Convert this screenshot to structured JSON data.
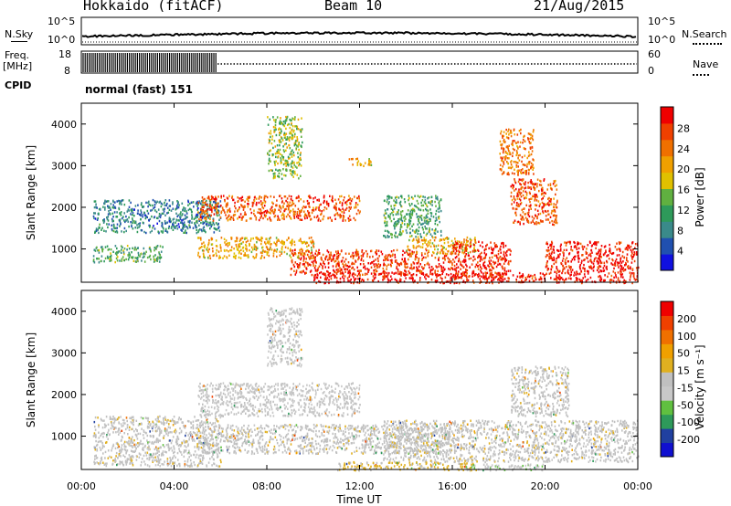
{
  "header": {
    "station": "Hokkaido (fitACF)",
    "beam": "Beam 10",
    "date": "21/Aug/2015"
  },
  "noise_panel": {
    "left_label": "N.Sky",
    "right_label": "N.Search",
    "tick_top": "10^5",
    "tick_bottom": "10^0"
  },
  "freq_panel": {
    "left_label_1": "Freq.",
    "left_label_2": "[MHz]",
    "ticks_left": [
      "18",
      "8"
    ],
    "ticks_right": [
      "60",
      "0"
    ],
    "right_label": "Nave"
  },
  "cpid": {
    "label": "CPID",
    "value": "normal (fast) 151"
  },
  "colors": {
    "power_scale": [
      "#1010e0",
      "#2050b0",
      "#3a8a8a",
      "#2e9a5a",
      "#60b040",
      "#e0c000",
      "#f0a000",
      "#f07000",
      "#f04000",
      "#f00000"
    ],
    "velocity_scale": [
      "#f00000",
      "#f04000",
      "#f07000",
      "#f0a000",
      "#e0b020",
      "#c0c0c0",
      "#c8c8c8",
      "#60c040",
      "#2e9a5a",
      "#2040a0",
      "#1010d0"
    ]
  },
  "chart_data": [
    {
      "type": "heatmap",
      "panel": "power",
      "ylabel": "Slant Range [km]",
      "yticks": [
        "1000",
        "2000",
        "3000",
        "4000"
      ],
      "ylim": [
        200,
        4500
      ],
      "xlim": [
        "00:00",
        "24:00"
      ],
      "colorbar_label": "Power [dB]",
      "colorbar_ticks": [
        "4",
        "8",
        "12",
        "16",
        "20",
        "24",
        "28"
      ],
      "colorbar_range": [
        0,
        32
      ],
      "echo_regions": [
        {
          "t_start": 0.5,
          "t_end": 3.5,
          "r_low": 700,
          "r_high": 1100,
          "value": 12
        },
        {
          "t_start": 0.5,
          "t_end": 6,
          "r_low": 1400,
          "r_high": 2200,
          "value": 8
        },
        {
          "t_start": 5,
          "t_end": 12,
          "r_low": 1700,
          "r_high": 2300,
          "value": 26
        },
        {
          "t_start": 5,
          "t_end": 10,
          "r_low": 800,
          "r_high": 1300,
          "value": 20
        },
        {
          "t_start": 9,
          "t_end": 16,
          "r_low": 400,
          "r_high": 1000,
          "value": 28
        },
        {
          "t_start": 13,
          "t_end": 15.5,
          "r_low": 1300,
          "r_high": 2300,
          "value": 12
        },
        {
          "t_start": 14,
          "t_end": 17,
          "r_low": 900,
          "r_high": 1300,
          "value": 20
        },
        {
          "t_start": 16,
          "t_end": 18.5,
          "r_low": 300,
          "r_high": 1200,
          "value": 30
        },
        {
          "t_start": 18.5,
          "t_end": 20.5,
          "r_low": 1600,
          "r_high": 2700,
          "value": 26
        },
        {
          "t_start": 20,
          "t_end": 24,
          "r_low": 200,
          "r_high": 1200,
          "value": 30
        },
        {
          "t_start": 10,
          "t_end": 20,
          "r_low": 200,
          "r_high": 450,
          "value": 30
        },
        {
          "t_start": 8,
          "t_end": 9.5,
          "r_low": 2700,
          "r_high": 4200,
          "value": 16
        },
        {
          "t_start": 18,
          "t_end": 19.5,
          "r_low": 2800,
          "r_high": 3900,
          "value": 24
        },
        {
          "t_start": 11.5,
          "t_end": 12.5,
          "r_low": 3000,
          "r_high": 3200,
          "value": 20
        }
      ]
    },
    {
      "type": "heatmap",
      "panel": "velocity",
      "ylabel": "Slant Range [km]",
      "xlabel": "Time UT",
      "yticks": [
        "1000",
        "2000",
        "3000",
        "4000"
      ],
      "xticks": [
        "00:00",
        "04:00",
        "08:00",
        "12:00",
        "16:00",
        "20:00",
        "00:00"
      ],
      "ylim": [
        200,
        4500
      ],
      "xlim": [
        "00:00",
        "24:00"
      ],
      "colorbar_label": "Velocity [m s^-1]",
      "colorbar_ticks": [
        "200",
        "100",
        "50",
        "15",
        "-15",
        "-50",
        "-100",
        "-200"
      ],
      "colorbar_range": [
        -250,
        250
      ],
      "echo_regions": [
        {
          "t_start": 0.5,
          "t_end": 6,
          "r_low": 300,
          "r_high": 1500,
          "value": 0
        },
        {
          "t_start": 5,
          "t_end": 12,
          "r_low": 1500,
          "r_high": 2300,
          "value": -30
        },
        {
          "t_start": 5,
          "t_end": 16,
          "r_low": 600,
          "r_high": 1300,
          "value": 0
        },
        {
          "t_start": 13,
          "t_end": 24,
          "r_low": 400,
          "r_high": 1400,
          "value": 0
        },
        {
          "t_start": 18.5,
          "t_end": 21,
          "r_low": 1500,
          "r_high": 2700,
          "value": 0
        },
        {
          "t_start": 11,
          "t_end": 17,
          "r_low": 200,
          "r_high": 400,
          "value": 40
        },
        {
          "t_start": 16.5,
          "t_end": 20,
          "r_low": 200,
          "r_high": 350,
          "value": -60
        },
        {
          "t_start": 8,
          "t_end": 9.5,
          "r_low": 2700,
          "r_high": 4100,
          "value": -30
        }
      ]
    }
  ]
}
